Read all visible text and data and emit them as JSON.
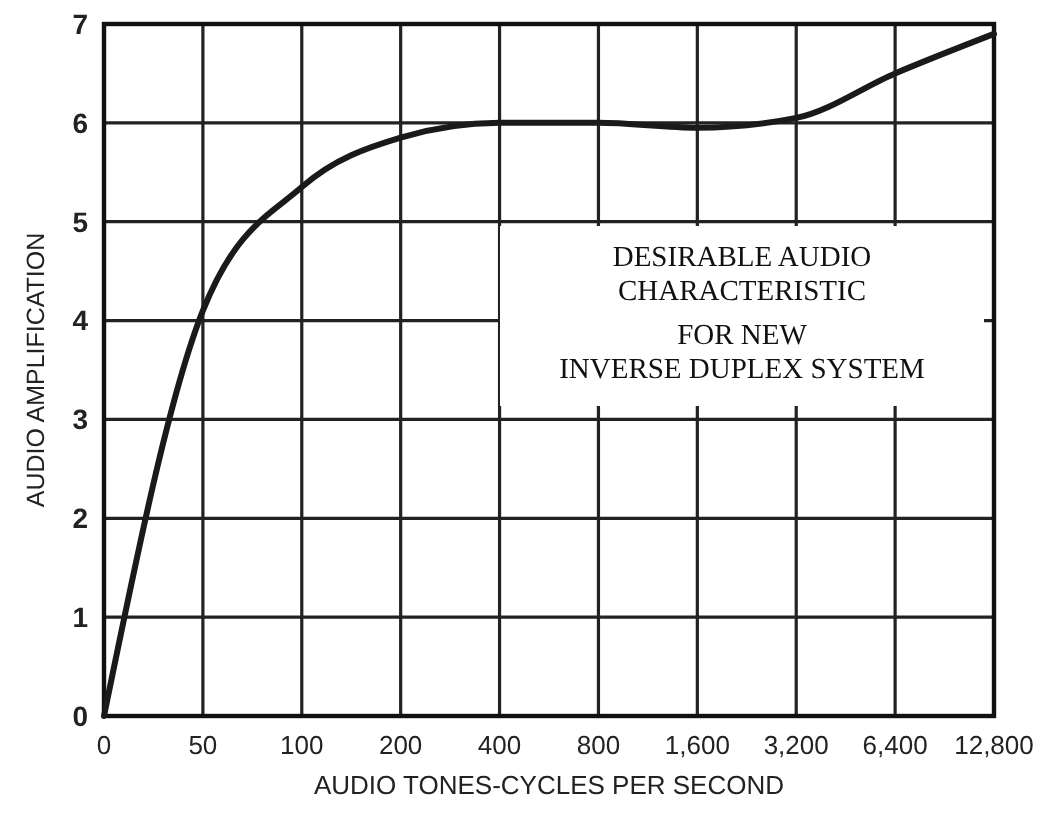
{
  "chart_data": {
    "type": "line",
    "xlabel": "AUDIO TONES-CYCLES PER SECOND",
    "ylabel": "AUDIO AMPLIFICATION",
    "categories": [
      "0",
      "50",
      "100",
      "200",
      "400",
      "800",
      "1,600",
      "3,200",
      "6,400",
      "12,800"
    ],
    "series": [
      {
        "color": "#1a1a1a",
        "values": [
          0,
          4.1,
          5.35,
          5.85,
          6.0,
          6.0,
          5.95,
          6.05,
          6.5,
          6.9
        ]
      }
    ],
    "ylim": [
      0,
      7
    ],
    "yticks": [
      0,
      1,
      2,
      3,
      4,
      5,
      6,
      7
    ],
    "grid": true,
    "marker": "none",
    "line_style": "solid",
    "annotations": [
      "DESIRABLE AUDIO\nCHARACTERISTIC\nFOR NEW\nINVERSE DUPLEX SYSTEM"
    ]
  }
}
